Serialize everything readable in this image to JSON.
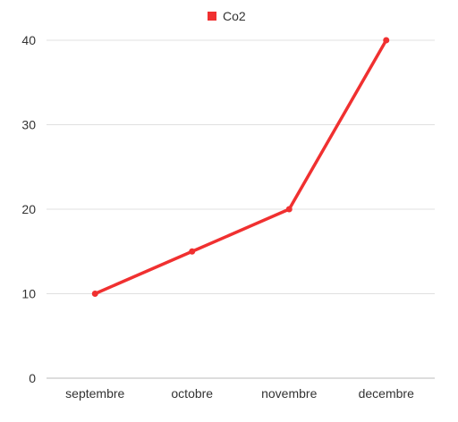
{
  "chart_data": {
    "type": "line",
    "categories": [
      "septembre",
      "octobre",
      "novembre",
      "decembre"
    ],
    "series": [
      {
        "name": "Co2",
        "values": [
          10,
          15,
          20,
          40
        ],
        "color": "#f03030"
      }
    ],
    "ylim": [
      0,
      40
    ],
    "yticks": [
      0,
      10,
      20,
      30,
      40
    ],
    "grid": true,
    "legend_position": "top-center",
    "gridline_color": "#e0e0e0",
    "axis_color": "#bbbbbb"
  }
}
